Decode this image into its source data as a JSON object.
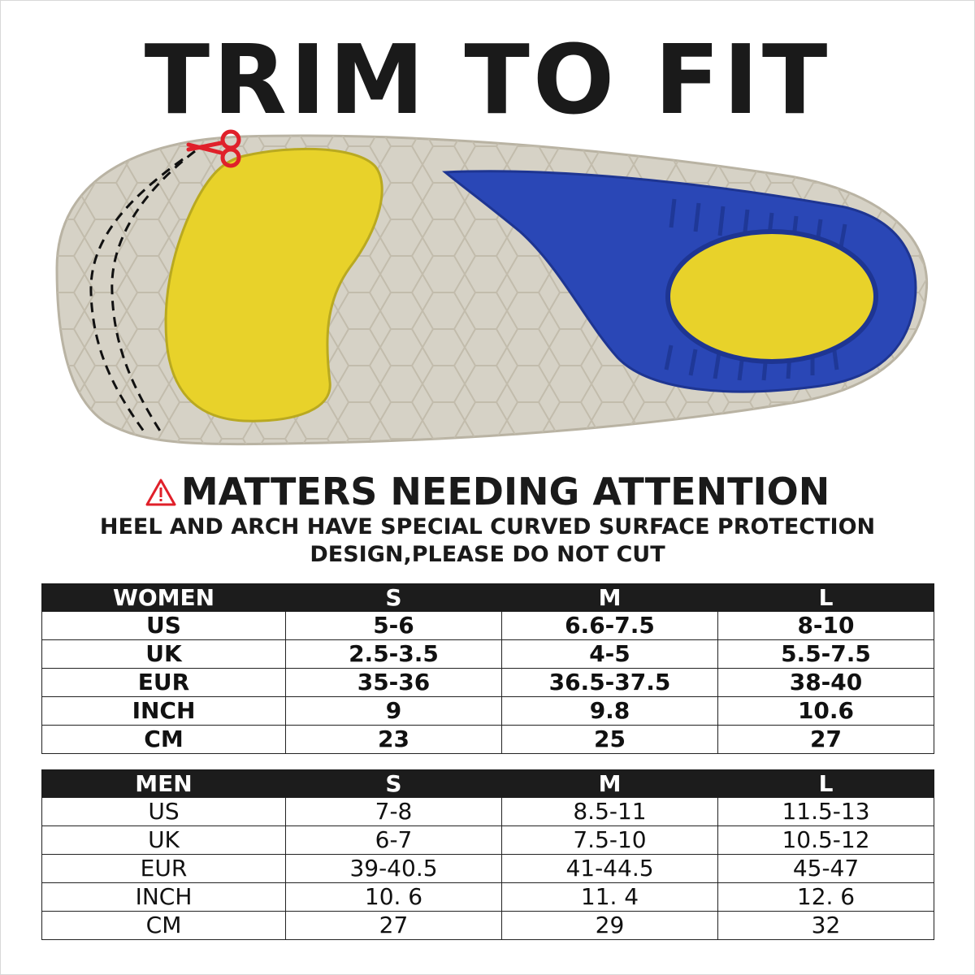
{
  "title": "TRIM TO FIT",
  "colors": {
    "insole_base": "#d6d2c6",
    "cushion_yellow": "#e8d22a",
    "arch_blue": "#2a47b6",
    "scissors_red": "#e0202a",
    "header_black": "#1c1c1c"
  },
  "icons": [
    "scissors-icon",
    "warning-icon"
  ],
  "attention": {
    "heading": "MATTERS NEEDING ATTENTION",
    "line1": "HEEL AND ARCH HAVE SPECIAL CURVED SURFACE PROTECTION",
    "line2": "DESIGN,PLEASE DO NOT CUT"
  },
  "women": {
    "header": [
      "WOMEN",
      "S",
      "M",
      "L"
    ],
    "rows": [
      [
        "US",
        "5-6",
        "6.6-7.5",
        "8-10"
      ],
      [
        "UK",
        "2.5-3.5",
        "4-5",
        "5.5-7.5"
      ],
      [
        "EUR",
        "35-36",
        "36.5-37.5",
        "38-40"
      ],
      [
        "INCH",
        "9",
        "9.8",
        "10.6"
      ],
      [
        "CM",
        "23",
        "25",
        "27"
      ]
    ]
  },
  "men": {
    "header": [
      "MEN",
      "S",
      "M",
      "L"
    ],
    "rows": [
      [
        "US",
        "7-8",
        "8.5-11",
        "11.5-13"
      ],
      [
        "UK",
        "6-7",
        "7.5-10",
        "10.5-12"
      ],
      [
        "EUR",
        "39-40.5",
        "41-44.5",
        "45-47"
      ],
      [
        "INCH",
        "10. 6",
        "11. 4",
        "12. 6"
      ],
      [
        "CM",
        "27",
        "29",
        "32"
      ]
    ]
  }
}
